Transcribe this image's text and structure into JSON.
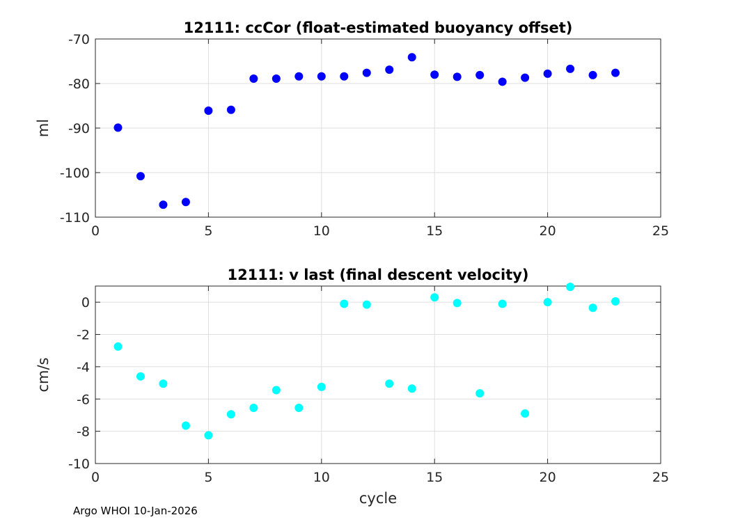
{
  "footer": "Argo WHOI 10-Jan-2026",
  "chart_data": [
    {
      "type": "scatter",
      "title": "12111: ccCor (float-estimated buoyancy offset)",
      "xlabel": "",
      "ylabel": "ml",
      "xlim": [
        0,
        25
      ],
      "ylim": [
        -110,
        -70
      ],
      "xticks": [
        0,
        5,
        10,
        15,
        20,
        25
      ],
      "yticks": [
        -110,
        -100,
        -90,
        -80,
        -70
      ],
      "grid": true,
      "marker_color": "#0000ff",
      "x": [
        1,
        2,
        3,
        4,
        5,
        6,
        7,
        8,
        9,
        10,
        11,
        12,
        13,
        14,
        15,
        16,
        17,
        18,
        19,
        20,
        21,
        22,
        23
      ],
      "y": [
        -89.9,
        -100.8,
        -107.2,
        -106.6,
        -86.1,
        -85.9,
        -78.9,
        -78.9,
        -78.4,
        -78.4,
        -78.4,
        -77.6,
        -76.9,
        -74.1,
        -78.0,
        -78.5,
        -78.1,
        -79.6,
        -78.7,
        -77.8,
        -76.7,
        -78.1,
        -77.6
      ]
    },
    {
      "type": "scatter",
      "title": "12111: v last (final descent velocity)",
      "xlabel": "cycle",
      "ylabel": "cm/s",
      "xlim": [
        0,
        25
      ],
      "ylim": [
        -10,
        1
      ],
      "xticks": [
        0,
        5,
        10,
        15,
        20,
        25
      ],
      "yticks": [
        -10,
        -8,
        -6,
        -4,
        -2,
        0
      ],
      "grid": true,
      "marker_color": "#00ffff",
      "x": [
        1,
        2,
        3,
        4,
        5,
        6,
        7,
        8,
        9,
        10,
        11,
        12,
        13,
        14,
        15,
        16,
        17,
        18,
        19,
        20,
        21,
        22,
        23
      ],
      "y": [
        -2.75,
        -4.6,
        -5.05,
        -7.65,
        -8.25,
        -6.95,
        -6.55,
        -5.45,
        -6.55,
        -5.25,
        -0.1,
        -0.15,
        -5.05,
        -5.35,
        0.3,
        -0.05,
        -5.65,
        -0.1,
        -6.9,
        0.0,
        0.95,
        -0.35,
        0.05
      ]
    }
  ]
}
